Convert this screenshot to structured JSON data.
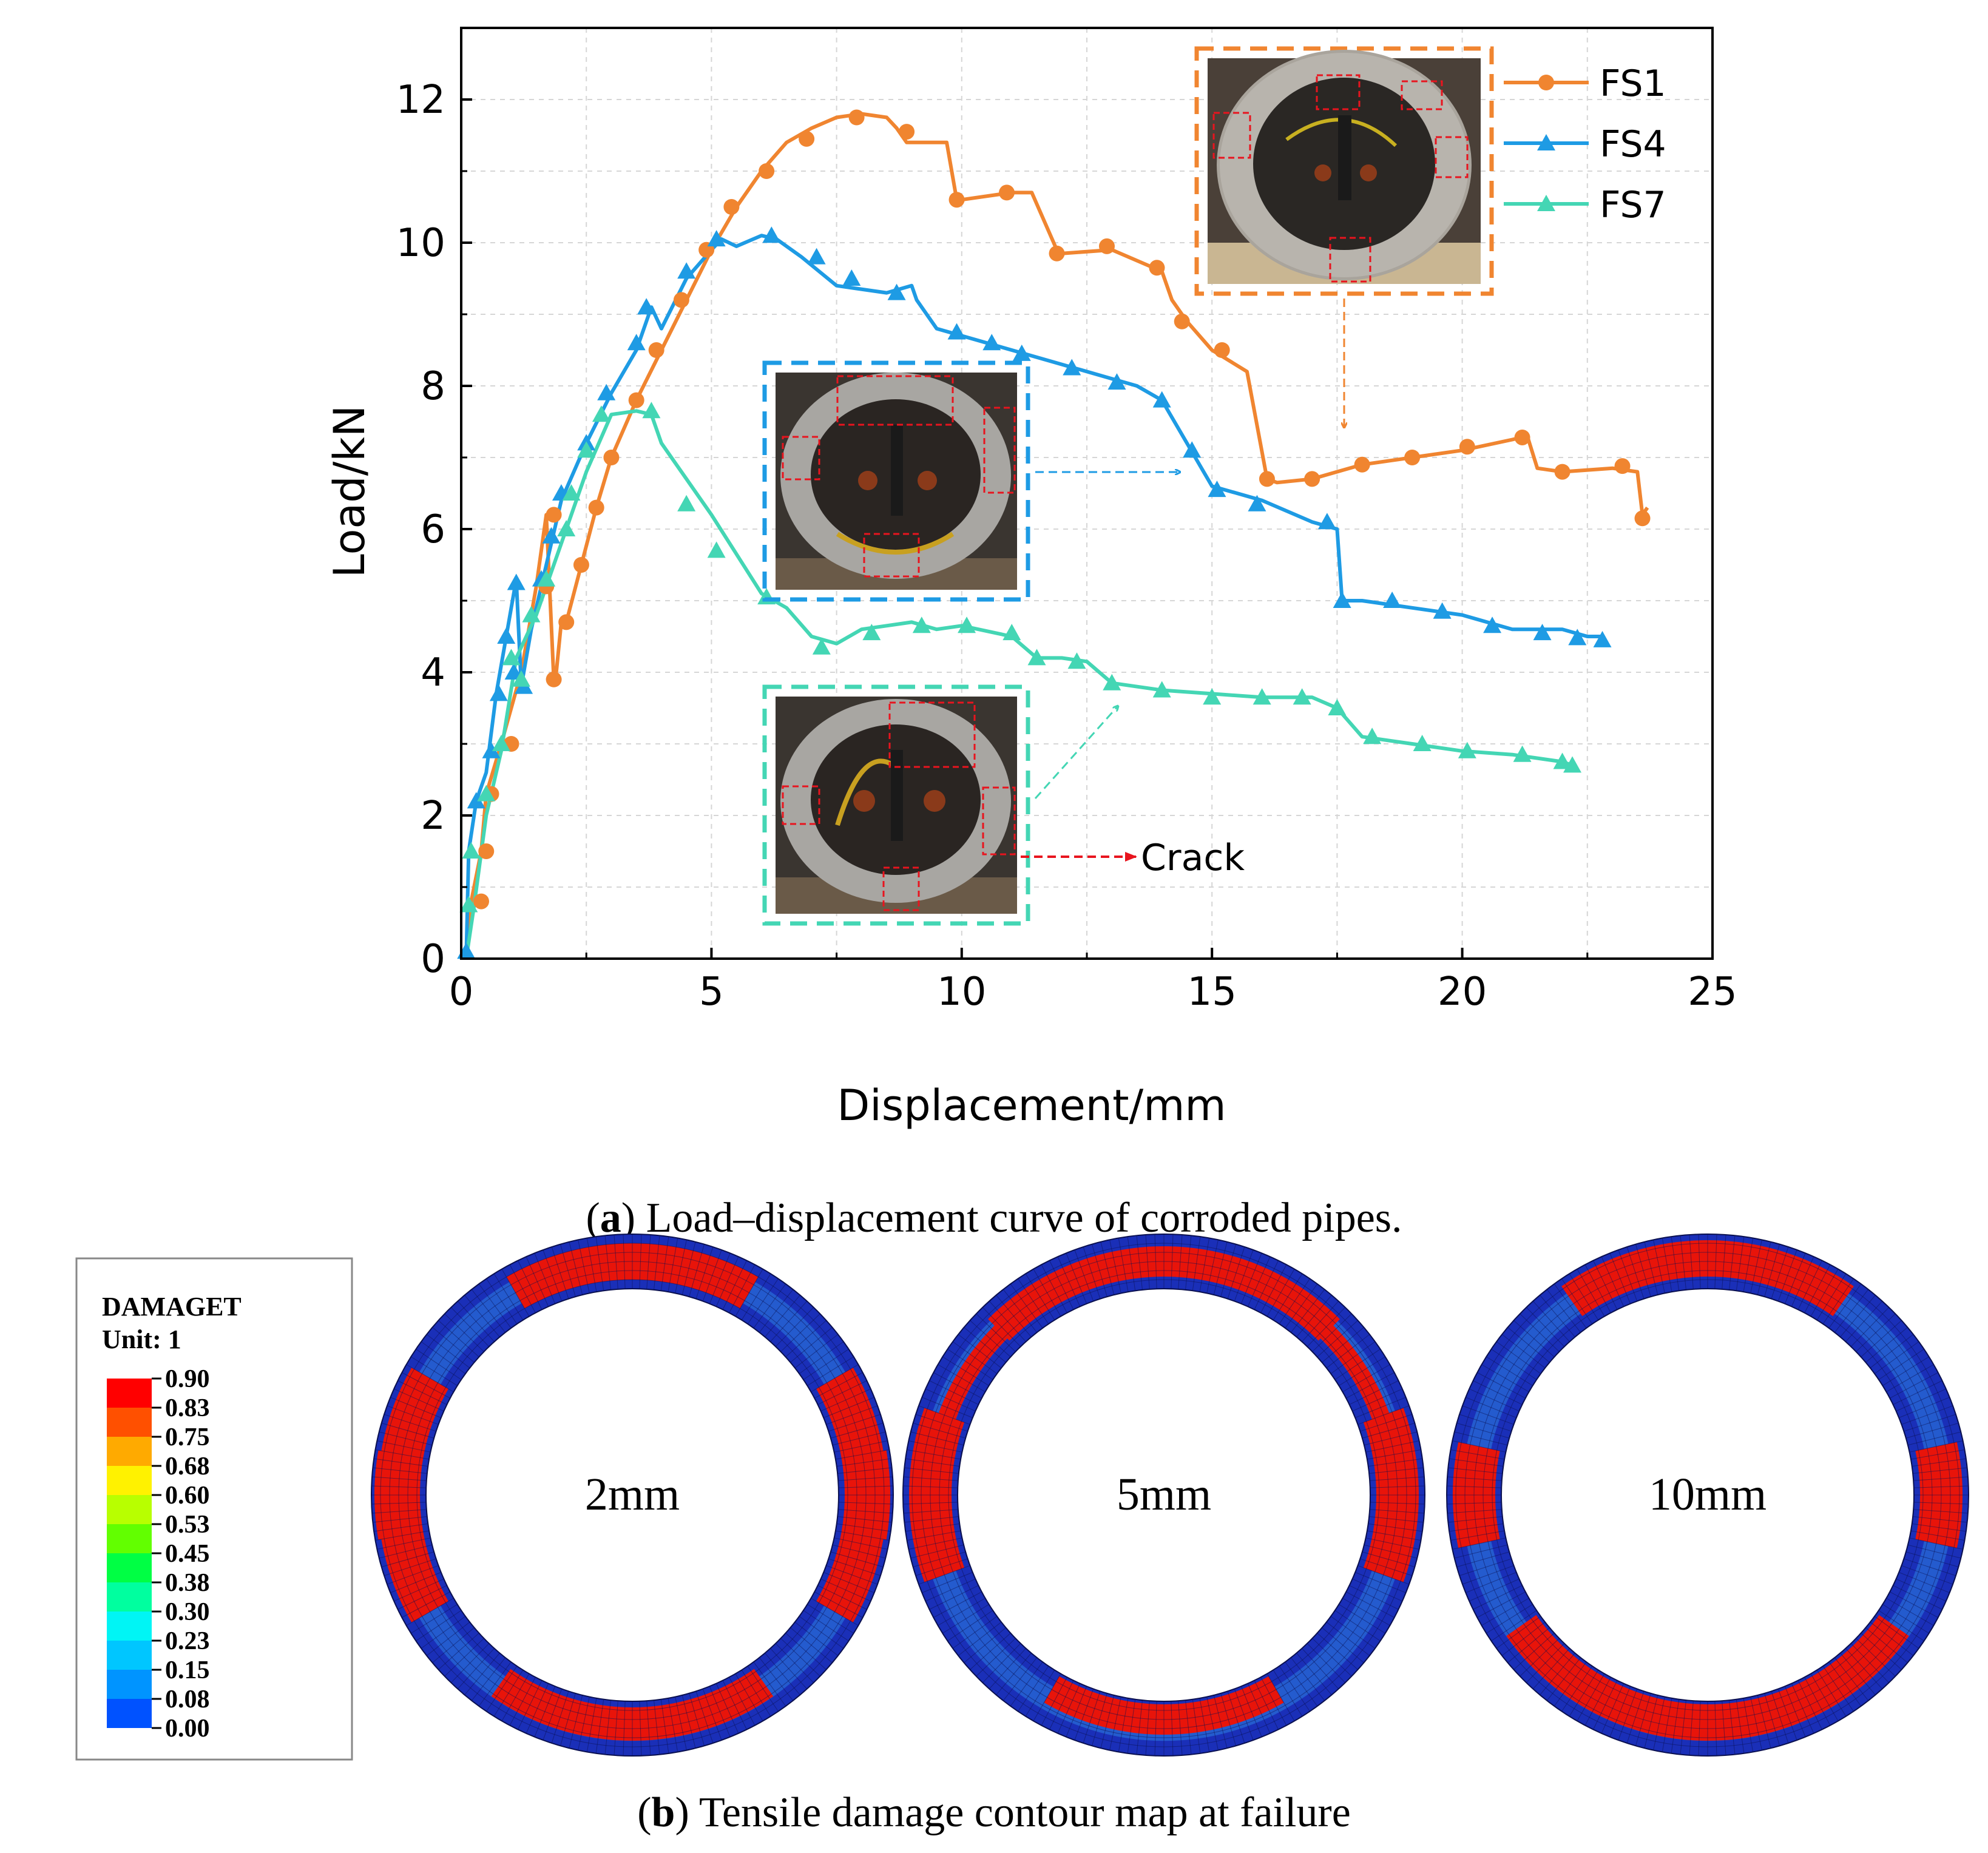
{
  "captions": {
    "a_letter": "a",
    "a_text": " Load–displacement curve of corroded pipes.",
    "b_letter": "b",
    "b_text": " Tensile damage contour map at failure"
  },
  "chart_data": [
    {
      "type": "line",
      "xlabel": "Displacement/mm",
      "ylabel": "Load/kN",
      "xlim": [
        0,
        25
      ],
      "ylim": [
        0,
        13
      ],
      "xticks": [
        0,
        5,
        10,
        15,
        20,
        25
      ],
      "yticks": [
        0,
        2,
        4,
        6,
        8,
        10,
        12
      ],
      "grid": true,
      "legend": "top-right",
      "series": [
        {
          "name": "FS1",
          "color": "#F08530",
          "marker": "circle",
          "x": [
            0.1,
            0.2,
            0.4,
            0.5,
            0.8,
            1.2,
            1.5,
            1.7,
            1.85,
            1.9,
            2.0,
            2.1,
            2.4,
            2.7,
            3.0,
            3.5,
            4.0,
            4.5,
            5.0,
            5.5,
            6.0,
            6.5,
            7.0,
            7.5,
            8.0,
            8.5,
            8.7,
            8.9,
            9.5,
            9.7,
            9.9,
            10.0,
            11.0,
            11.4,
            11.9,
            12.0,
            13.0,
            14.0,
            14.2,
            14.5,
            15.0,
            15.7,
            16.1,
            16.3,
            17.0,
            18.0,
            19.0,
            20.0,
            21.0,
            21.3,
            21.5,
            22.0,
            23.0,
            23.5,
            23.6,
            23.7
          ],
          "y": [
            0,
            0.8,
            1.5,
            2.3,
            3.0,
            4.0,
            5.2,
            6.2,
            3.9,
            4.0,
            4.7,
            4.7,
            5.5,
            6.3,
            7.0,
            7.8,
            8.5,
            9.2,
            9.9,
            10.5,
            11.0,
            11.4,
            11.6,
            11.75,
            11.8,
            11.75,
            11.6,
            11.4,
            11.4,
            11.4,
            10.6,
            10.6,
            10.7,
            10.7,
            9.9,
            9.85,
            9.9,
            9.6,
            9.2,
            8.9,
            8.5,
            8.2,
            6.7,
            6.65,
            6.7,
            6.9,
            7.0,
            7.1,
            7.25,
            7.3,
            6.85,
            6.8,
            6.85,
            6.8,
            6.2,
            6.3
          ],
          "markers_at": [
            [
              0.4,
              0.8
            ],
            [
              0.5,
              1.5
            ],
            [
              0.6,
              2.3
            ],
            [
              1.0,
              3.0
            ],
            [
              1.7,
              5.2
            ],
            [
              1.85,
              6.2
            ],
            [
              1.85,
              3.9
            ],
            [
              2.1,
              4.7
            ],
            [
              2.4,
              5.5
            ],
            [
              2.7,
              6.3
            ],
            [
              3.0,
              7.0
            ],
            [
              3.5,
              7.8
            ],
            [
              3.9,
              8.5
            ],
            [
              4.4,
              9.2
            ],
            [
              4.9,
              9.9
            ],
            [
              5.4,
              10.5
            ],
            [
              6.1,
              11.0
            ],
            [
              6.9,
              11.45
            ],
            [
              7.9,
              11.75
            ],
            [
              8.9,
              11.55
            ],
            [
              9.9,
              10.6
            ],
            [
              10.9,
              10.7
            ],
            [
              11.9,
              9.85
            ],
            [
              12.9,
              9.95
            ],
            [
              13.9,
              9.65
            ],
            [
              14.4,
              8.9
            ],
            [
              15.2,
              8.5
            ],
            [
              16.1,
              6.7
            ],
            [
              17.0,
              6.7
            ],
            [
              18.0,
              6.9
            ],
            [
              19.0,
              7.0
            ],
            [
              20.1,
              7.15
            ],
            [
              21.2,
              7.28
            ],
            [
              22.0,
              6.8
            ],
            [
              23.2,
              6.88
            ],
            [
              23.6,
              6.15
            ]
          ]
        },
        {
          "name": "FS4",
          "color": "#1E9BE4",
          "marker": "triangle",
          "x": [
            0.1,
            0.15,
            0.3,
            0.5,
            0.7,
            0.9,
            1.1,
            1.2,
            1.4,
            1.6,
            1.8,
            2.0,
            2.5,
            3.0,
            3.5,
            3.8,
            4.0,
            4.5,
            5.0,
            5.2,
            5.5,
            6.0,
            6.3,
            6.8,
            7.5,
            8.5,
            9.0,
            9.1,
            9.5,
            10.0,
            11.0,
            12.0,
            13.0,
            13.5,
            14.0,
            14.5,
            15.0,
            16.0,
            17.0,
            17.5,
            17.6,
            18.0,
            19.0,
            20.0,
            21.0,
            22.0,
            22.5,
            22.8
          ],
          "y": [
            0,
            1.5,
            2.2,
            2.6,
            3.7,
            4.5,
            5.3,
            3.8,
            4.6,
            5.2,
            5.8,
            6.4,
            7.2,
            7.9,
            8.5,
            9.1,
            8.8,
            9.5,
            9.9,
            10.05,
            9.95,
            10.1,
            10.05,
            9.8,
            9.4,
            9.3,
            9.4,
            9.2,
            8.8,
            8.7,
            8.5,
            8.3,
            8.1,
            8.0,
            7.8,
            7.2,
            6.6,
            6.4,
            6.1,
            6.0,
            5.0,
            5.0,
            4.9,
            4.8,
            4.6,
            4.6,
            4.5,
            4.5
          ],
          "markers_at": [
            [
              0.1,
              0.1
            ],
            [
              0.3,
              2.2
            ],
            [
              0.6,
              2.9
            ],
            [
              0.75,
              3.7
            ],
            [
              0.9,
              4.5
            ],
            [
              1.1,
              5.25
            ],
            [
              1.05,
              4.0
            ],
            [
              1.25,
              3.8
            ],
            [
              1.6,
              5.3
            ],
            [
              1.8,
              5.9
            ],
            [
              2.0,
              6.5
            ],
            [
              2.5,
              7.2
            ],
            [
              2.9,
              7.9
            ],
            [
              3.5,
              8.6
            ],
            [
              3.7,
              9.1
            ],
            [
              4.5,
              9.6
            ],
            [
              5.1,
              10.05
            ],
            [
              6.2,
              10.1
            ],
            [
              7.1,
              9.8
            ],
            [
              7.8,
              9.5
            ],
            [
              8.7,
              9.3
            ],
            [
              9.9,
              8.75
            ],
            [
              10.6,
              8.6
            ],
            [
              11.2,
              8.45
            ],
            [
              12.2,
              8.25
            ],
            [
              13.1,
              8.05
            ],
            [
              14.0,
              7.8
            ],
            [
              14.6,
              7.1
            ],
            [
              15.1,
              6.55
            ],
            [
              15.9,
              6.35
            ],
            [
              17.3,
              6.1
            ],
            [
              17.6,
              5.0
            ],
            [
              18.6,
              5.0
            ],
            [
              19.6,
              4.85
            ],
            [
              20.6,
              4.65
            ],
            [
              21.6,
              4.55
            ],
            [
              22.3,
              4.48
            ],
            [
              22.8,
              4.45
            ]
          ]
        },
        {
          "name": "FS7",
          "color": "#44D6B4",
          "marker": "triangle",
          "x": [
            0.1,
            0.25,
            0.5,
            0.8,
            1.1,
            1.5,
            2.0,
            2.5,
            3.0,
            3.5,
            3.8,
            4.0,
            4.5,
            5.0,
            6.0,
            6.5,
            7.0,
            7.5,
            8.0,
            8.5,
            9.0,
            9.5,
            10.0,
            11.0,
            11.5,
            12.0,
            12.5,
            13.0,
            14.0,
            15.0,
            16.0,
            17.0,
            17.5,
            18.0,
            19.0,
            20.0,
            21.0,
            22.0,
            22.2
          ],
          "y": [
            0,
            0.7,
            2.0,
            2.9,
            4.2,
            4.8,
            5.8,
            6.8,
            7.6,
            7.65,
            7.6,
            7.2,
            6.7,
            6.2,
            5.1,
            4.9,
            4.5,
            4.4,
            4.6,
            4.65,
            4.7,
            4.6,
            4.65,
            4.5,
            4.2,
            4.2,
            4.15,
            3.85,
            3.75,
            3.7,
            3.65,
            3.65,
            3.5,
            3.1,
            3.0,
            2.9,
            2.85,
            2.75,
            2.7
          ],
          "markers_at": [
            [
              0.15,
              0.75
            ],
            [
              0.2,
              1.5
            ],
            [
              0.5,
              2.3
            ],
            [
              0.8,
              3.0
            ],
            [
              1.0,
              4.2
            ],
            [
              1.2,
              3.9
            ],
            [
              1.4,
              4.8
            ],
            [
              1.7,
              5.3
            ],
            [
              2.1,
              6.0
            ],
            [
              2.2,
              6.5
            ],
            [
              2.5,
              7.1
            ],
            [
              2.8,
              7.6
            ],
            [
              3.8,
              7.65
            ],
            [
              4.5,
              6.35
            ],
            [
              5.1,
              5.7
            ],
            [
              6.1,
              5.05
            ],
            [
              7.2,
              4.35
            ],
            [
              8.2,
              4.55
            ],
            [
              9.2,
              4.65
            ],
            [
              10.1,
              4.65
            ],
            [
              11.0,
              4.55
            ],
            [
              11.5,
              4.2
            ],
            [
              12.3,
              4.15
            ],
            [
              13.0,
              3.85
            ],
            [
              14.0,
              3.75
            ],
            [
              15.0,
              3.65
            ],
            [
              16.0,
              3.65
            ],
            [
              16.8,
              3.65
            ],
            [
              17.5,
              3.5
            ],
            [
              18.2,
              3.1
            ],
            [
              19.2,
              3.0
            ],
            [
              20.1,
              2.9
            ],
            [
              21.2,
              2.85
            ],
            [
              22.0,
              2.75
            ],
            [
              22.2,
              2.7
            ]
          ]
        }
      ],
      "annotations": {
        "crack_label": "Crack"
      }
    },
    {
      "type": "heatmap",
      "title": "DAMAGET",
      "subtitle": "Unit: 1",
      "legend_values": [
        "0.90",
        "0.83",
        "0.75",
        "0.68",
        "0.60",
        "0.53",
        "0.45",
        "0.38",
        "0.30",
        "0.23",
        "0.15",
        "0.08",
        "0.00"
      ],
      "legend_colors": [
        "#FF0000",
        "#FF5000",
        "#FFAA00",
        "#FFF200",
        "#B8FF00",
        "#62FF00",
        "#00FF44",
        "#00FF9F",
        "#00F5F5",
        "#00C6FF",
        "#0094FF",
        "#0052FF",
        "#0000FF"
      ],
      "panels": [
        "2mm",
        "5mm",
        "10mm"
      ]
    }
  ]
}
